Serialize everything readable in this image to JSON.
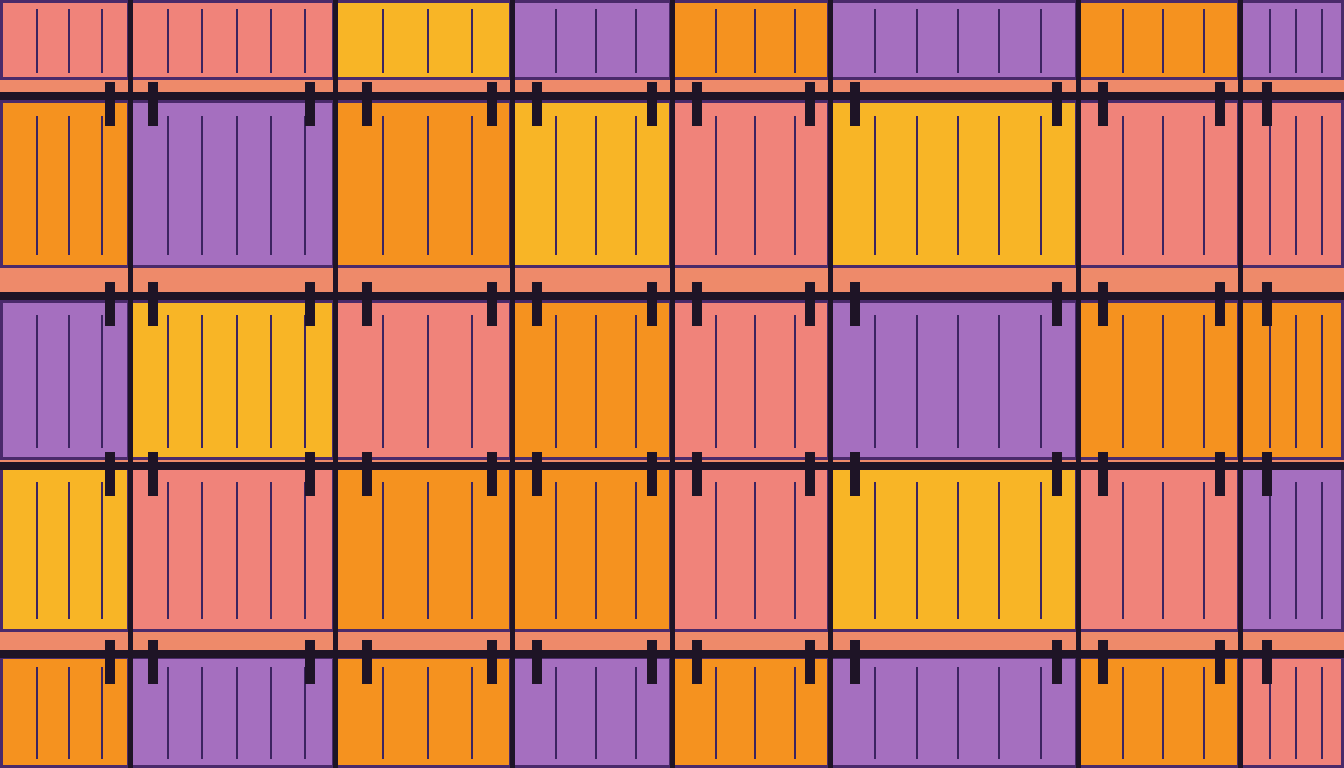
{
  "palette": {
    "orange": "#f5921f",
    "pink": "#f0837a",
    "purple": "#a56fbf",
    "yellow": "#f8b526"
  },
  "grid": [
    [
      "pink",
      "pink",
      "yellow",
      "purple",
      "orange",
      "purple",
      "orange",
      "purple"
    ],
    [
      "orange",
      "purple",
      "orange",
      "yellow",
      "pink",
      "yellow",
      "pink",
      "pink"
    ],
    [
      "purple",
      "yellow",
      "pink",
      "orange",
      "pink",
      "purple",
      "orange",
      "orange"
    ],
    [
      "yellow",
      "pink",
      "orange",
      "orange",
      "pink",
      "yellow",
      "pink",
      "purple"
    ],
    [
      "orange",
      "purple",
      "orange",
      "purple",
      "orange",
      "purple",
      "orange",
      "pink"
    ]
  ]
}
